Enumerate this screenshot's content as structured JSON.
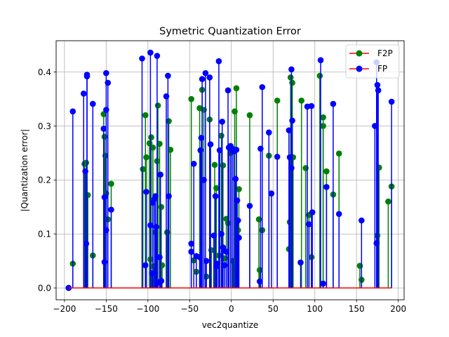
{
  "chart_data": {
    "type": "stem",
    "title": "Symetric Quantization Error",
    "xlabel": "vec2quantize",
    "ylabel": "|Quantization error|",
    "xlim": [
      -210,
      207
    ],
    "ylim": [
      -0.022,
      0.458
    ],
    "x_ticks": [
      -200,
      -150,
      -100,
      -50,
      0,
      50,
      100,
      150,
      200
    ],
    "x_tick_labels": [
      "−200",
      "−150",
      "−100",
      "−50",
      "0",
      "50",
      "100",
      "150",
      "200"
    ],
    "y_ticks": [
      0.0,
      0.1,
      0.2,
      0.3,
      0.4
    ],
    "y_tick_labels": [
      "0.0",
      "0.1",
      "0.2",
      "0.3",
      "0.4"
    ],
    "grid": true,
    "legend_position": "top-right",
    "baseline": {
      "y": 0,
      "color": "#ff0000",
      "from": -195,
      "to": 192
    },
    "series": [
      {
        "name": "F2P",
        "color": "#008000",
        "points": [
          [
            -195,
            0.0
          ],
          [
            -190,
            0.045
          ],
          [
            -176,
            0.23
          ],
          [
            -174,
            0.232
          ],
          [
            -172,
            0.172
          ],
          [
            -166,
            0.06
          ],
          [
            -153,
            0.322
          ],
          [
            -152,
            0.28
          ],
          [
            -151,
            0.245
          ],
          [
            -150,
            0.175
          ],
          [
            -148,
            0.127
          ],
          [
            -144,
            0.193
          ],
          [
            -106,
            0.22
          ],
          [
            -103,
            0.32
          ],
          [
            -102,
            0.242
          ],
          [
            -98,
            0.268
          ],
          [
            -97,
            0.053
          ],
          [
            -96,
            0.279
          ],
          [
            -94,
            0.26
          ],
          [
            -93,
            0.04
          ],
          [
            -91,
            0.103
          ],
          [
            -89,
            0.235
          ],
          [
            -88,
            0.338
          ],
          [
            -86,
            0.267
          ],
          [
            -85,
            0.012
          ],
          [
            -84,
            0.15
          ],
          [
            -83,
            0.042
          ],
          [
            -77,
            0.103
          ],
          [
            -75,
            0.309
          ],
          [
            -73,
            0.256
          ],
          [
            -48,
            0.35
          ],
          [
            -45,
            0.051
          ],
          [
            -42,
            0.03
          ],
          [
            -38,
            0.333
          ],
          [
            -35,
            0.367
          ],
          [
            -33,
            0.33
          ],
          [
            -30,
            0.021
          ],
          [
            -26,
            0.312
          ],
          [
            -24,
            0.07
          ],
          [
            -20,
            0.228
          ],
          [
            -18,
            0.185
          ],
          [
            -15,
            0.06
          ],
          [
            -12,
            0.282
          ],
          [
            -10,
            0.227
          ],
          [
            -8,
            0.055
          ],
          [
            -6,
            0.128
          ],
          [
            -4,
            0.12
          ],
          [
            -1,
            0.25
          ],
          [
            2,
            0.05
          ],
          [
            4,
            0.327
          ],
          [
            6,
            0.37
          ],
          [
            8,
            0.107
          ],
          [
            9,
            0.183
          ],
          [
            22,
            0.32
          ],
          [
            33,
            0.127
          ],
          [
            34,
            0.033
          ],
          [
            37,
            0.107
          ],
          [
            45,
            0.245
          ],
          [
            55,
            0.347
          ],
          [
            69,
            0.072
          ],
          [
            70,
            0.122
          ],
          [
            71,
            0.39
          ],
          [
            73,
            0.38
          ],
          [
            74,
            0.242
          ],
          [
            84,
            0.347
          ],
          [
            89,
            0.222
          ],
          [
            93,
            0.135
          ],
          [
            96,
            0.057
          ],
          [
            106,
            0.393
          ],
          [
            110,
            0.316
          ],
          [
            110,
            0.3
          ],
          [
            114,
            0.216
          ],
          [
            122,
            0.173
          ],
          [
            129,
            0.249
          ],
          [
            154,
            0.041
          ],
          [
            156,
            0.015
          ],
          [
            175,
            0.097
          ],
          [
            177,
            0.223
          ],
          [
            188,
            0.16
          ],
          [
            192,
            0.188
          ]
        ]
      },
      {
        "name": "FP",
        "color": "#0000ff",
        "points": [
          [
            -195,
            0.0
          ],
          [
            -190,
            0.327
          ],
          [
            -177,
            0.36
          ],
          [
            -175,
            0.216
          ],
          [
            -174,
            0.082
          ],
          [
            -173,
            0.395
          ],
          [
            -173,
            0.392
          ],
          [
            -166,
            0.341
          ],
          [
            -153,
            0.295
          ],
          [
            -152,
            0.168
          ],
          [
            -152,
            0.048
          ],
          [
            -150,
            0.33
          ],
          [
            -150,
            0.398
          ],
          [
            -150,
            0.107
          ],
          [
            -148,
            0.38
          ],
          [
            -144,
            0.145
          ],
          [
            -107,
            0.425
          ],
          [
            -103,
            0.042
          ],
          [
            -102,
            0.178
          ],
          [
            -97,
            0.436
          ],
          [
            -97,
            0.116
          ],
          [
            -95,
            0.027
          ],
          [
            -94,
            0.158
          ],
          [
            -92,
            0.165
          ],
          [
            -91,
            0.17
          ],
          [
            -90,
            0.113
          ],
          [
            -89,
            0.43
          ],
          [
            -88,
            0.01
          ],
          [
            -86,
            0.057
          ],
          [
            -85,
            0.21
          ],
          [
            -84,
            0.013
          ],
          [
            -78,
            0.355
          ],
          [
            -76,
            0.393
          ],
          [
            -75,
            0.17
          ],
          [
            -48,
            0.082
          ],
          [
            -48,
            0.067
          ],
          [
            -45,
            0.23
          ],
          [
            -42,
            0.059
          ],
          [
            -38,
            0.057
          ],
          [
            -37,
            0.255
          ],
          [
            -36,
            0.278
          ],
          [
            -35,
            0.387
          ],
          [
            -33,
            0.2
          ],
          [
            -31,
            0.398
          ],
          [
            -30,
            0.05
          ],
          [
            -26,
            0.39
          ],
          [
            -25,
            0.266
          ],
          [
            -21,
            0.097
          ],
          [
            -19,
            0.17
          ],
          [
            -18,
            0.04
          ],
          [
            -17,
            0.045
          ],
          [
            -15,
            0.42
          ],
          [
            -14,
            0.255
          ],
          [
            -12,
            0.1
          ],
          [
            -11,
            0.308
          ],
          [
            -10,
            0.075
          ],
          [
            -8,
            0.042
          ],
          [
            -6,
            0.067
          ],
          [
            -4,
            0.366
          ],
          [
            -3,
            0.26
          ],
          [
            -1,
            0.263
          ],
          [
            1,
            0.258
          ],
          [
            3,
            0.253
          ],
          [
            5,
            0.202
          ],
          [
            6,
            0.256
          ],
          [
            7,
            0.162
          ],
          [
            8,
            0.125
          ],
          [
            9,
            0.093
          ],
          [
            22,
            0.152
          ],
          [
            34,
            0.012
          ],
          [
            35,
            0.258
          ],
          [
            37,
            0.372
          ],
          [
            45,
            0.288
          ],
          [
            48,
            0.175
          ],
          [
            55,
            0.243
          ],
          [
            69,
            0.292
          ],
          [
            70,
            0.242
          ],
          [
            72,
            0.222
          ],
          [
            72,
            0.405
          ],
          [
            73,
            0.31
          ],
          [
            83,
            0.047
          ],
          [
            91,
            0.336
          ],
          [
            93,
            0.118
          ],
          [
            96,
            0.337
          ],
          [
            97,
            0.14
          ],
          [
            107,
            0.422
          ],
          [
            110,
            0.008
          ],
          [
            114,
            0.187
          ],
          [
            122,
            0.341
          ],
          [
            129,
            0.137
          ],
          [
            156,
            0.125
          ],
          [
            172,
            0.3
          ],
          [
            174,
            0.083
          ],
          [
            174,
            0.418
          ],
          [
            175,
            0.376
          ],
          [
            176,
            0.366
          ],
          [
            192,
            0.345
          ]
        ]
      }
    ],
    "legend": [
      {
        "label": "F2P",
        "marker_color": "#008000",
        "line_color": "#ff0000"
      },
      {
        "label": "FP",
        "marker_color": "#0000ff",
        "line_color": "#ff0000"
      }
    ]
  }
}
